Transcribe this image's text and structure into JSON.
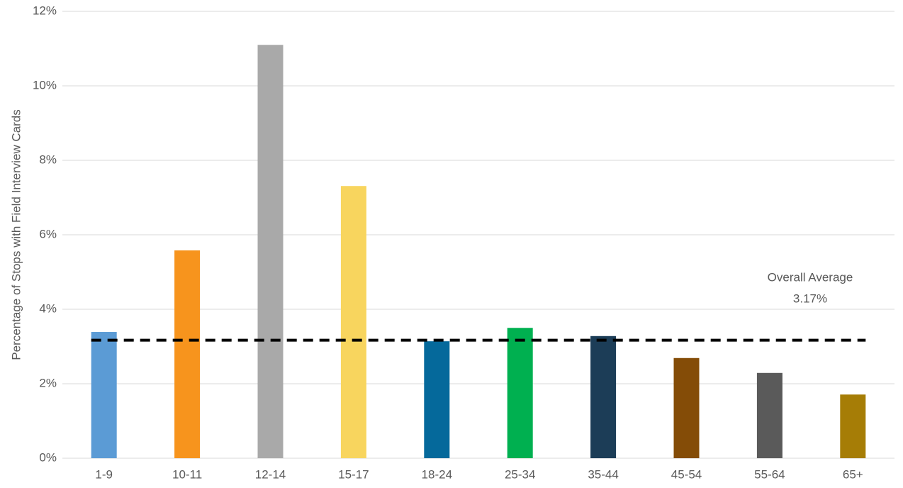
{
  "chart_data": {
    "type": "bar",
    "y_axis_label": "Percentage of Stops with Field Interview Cards",
    "categories": [
      "1-9",
      "10-11",
      "12-14",
      "15-17",
      "18-24",
      "25-34",
      "35-44",
      "45-54",
      "55-64",
      "65+"
    ],
    "values": [
      3.39,
      5.58,
      11.1,
      7.31,
      3.14,
      3.5,
      3.28,
      2.69,
      2.29,
      1.71
    ],
    "colors": [
      "#5b9bd5",
      "#f7941d",
      "#a9a9a9",
      "#f8d55e",
      "#05699b",
      "#00b050",
      "#1c3d57",
      "#844c07",
      "#5a5a5a",
      "#a67d06"
    ],
    "ylim": [
      0,
      12
    ],
    "yticks": [
      {
        "value": 0,
        "label": "0%"
      },
      {
        "value": 2,
        "label": "2%"
      },
      {
        "value": 4,
        "label": "4%"
      },
      {
        "value": 6,
        "label": "6%"
      },
      {
        "value": 8,
        "label": "8%"
      },
      {
        "value": 10,
        "label": "10%"
      },
      {
        "value": 12,
        "label": "12%"
      }
    ],
    "grid": true,
    "average": {
      "value": 3.17,
      "label": "Overall Average",
      "value_label": "3.17%"
    }
  }
}
